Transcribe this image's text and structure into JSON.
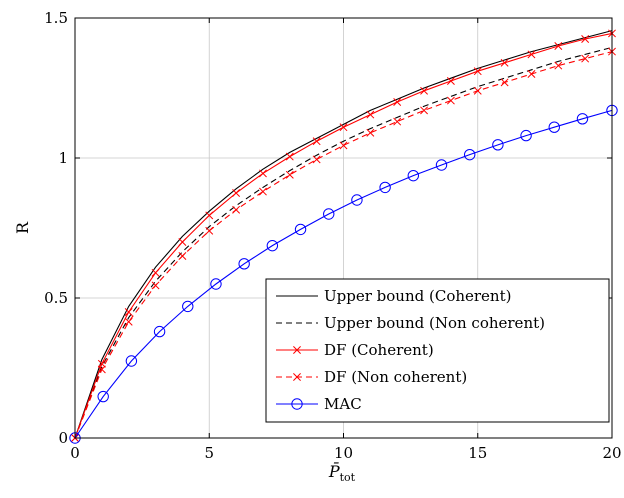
{
  "chart_data": {
    "type": "line",
    "xlabel": "P̄",
    "xlabel_sub": "tot",
    "ylabel": "R",
    "xlim": [
      0,
      20
    ],
    "ylim": [
      0,
      1.5
    ],
    "xticks": [
      0,
      5,
      10,
      15,
      20
    ],
    "yticks": [
      0,
      0.5,
      1,
      1.5
    ],
    "xtick_labels": [
      "0",
      "5",
      "10",
      "15",
      "20"
    ],
    "ytick_labels": [
      "0",
      "0.5",
      "1",
      "1.5"
    ],
    "grid": true,
    "legend_position": "bottom-right",
    "series": [
      {
        "name": "Upper bound (Coherent)",
        "color": "#000000",
        "dash": "solid",
        "marker": "none",
        "x": [
          0,
          1,
          2,
          3,
          4,
          5,
          6,
          7,
          8,
          9,
          10,
          11,
          12,
          13,
          14,
          15,
          16,
          17,
          18,
          19,
          20
        ],
        "y": [
          0,
          0.28,
          0.47,
          0.61,
          0.72,
          0.81,
          0.89,
          0.96,
          1.02,
          1.07,
          1.12,
          1.17,
          1.21,
          1.25,
          1.285,
          1.32,
          1.35,
          1.38,
          1.405,
          1.43,
          1.455
        ]
      },
      {
        "name": "Upper bound (Non coherent)",
        "color": "#000000",
        "dash": "dashed",
        "marker": "none",
        "x": [
          0,
          1,
          2,
          3,
          4,
          5,
          6,
          7,
          8,
          9,
          10,
          11,
          12,
          13,
          14,
          15,
          16,
          17,
          18,
          19,
          20
        ],
        "y": [
          0,
          0.255,
          0.43,
          0.56,
          0.665,
          0.755,
          0.83,
          0.895,
          0.955,
          1.01,
          1.06,
          1.105,
          1.145,
          1.185,
          1.22,
          1.255,
          1.285,
          1.315,
          1.345,
          1.37,
          1.395
        ]
      },
      {
        "name": "DF (Coherent)",
        "color": "#ff0000",
        "dash": "solid",
        "marker": "x",
        "x": [
          0,
          1,
          2,
          3,
          4,
          5,
          6,
          7,
          8,
          9,
          10,
          11,
          12,
          13,
          14,
          15,
          16,
          17,
          18,
          19,
          20
        ],
        "y": [
          0,
          0.265,
          0.45,
          0.59,
          0.7,
          0.795,
          0.875,
          0.945,
          1.005,
          1.06,
          1.11,
          1.155,
          1.2,
          1.24,
          1.275,
          1.31,
          1.34,
          1.37,
          1.4,
          1.425,
          1.445
        ]
      },
      {
        "name": "DF (Non coherent)",
        "color": "#ff0000",
        "dash": "dashed",
        "marker": "x",
        "x": [
          0,
          1,
          2,
          3,
          4,
          5,
          6,
          7,
          8,
          9,
          10,
          11,
          12,
          13,
          14,
          15,
          16,
          17,
          18,
          19,
          20
        ],
        "y": [
          0,
          0.245,
          0.415,
          0.545,
          0.65,
          0.74,
          0.815,
          0.88,
          0.94,
          0.995,
          1.045,
          1.09,
          1.13,
          1.17,
          1.205,
          1.24,
          1.27,
          1.3,
          1.33,
          1.355,
          1.38
        ]
      },
      {
        "name": "MAC",
        "color": "#0000ff",
        "dash": "solid",
        "marker": "circle",
        "x": [
          0,
          1.05,
          2.1,
          3.15,
          4.2,
          5.25,
          6.3,
          7.35,
          8.4,
          9.45,
          10.5,
          11.55,
          12.6,
          13.65,
          14.7,
          15.75,
          16.8,
          17.85,
          18.9,
          20
        ],
        "y": [
          0,
          0.148,
          0.275,
          0.38,
          0.47,
          0.55,
          0.622,
          0.687,
          0.745,
          0.8,
          0.85,
          0.895,
          0.937,
          0.975,
          1.012,
          1.047,
          1.08,
          1.11,
          1.14,
          1.17
        ]
      }
    ]
  }
}
